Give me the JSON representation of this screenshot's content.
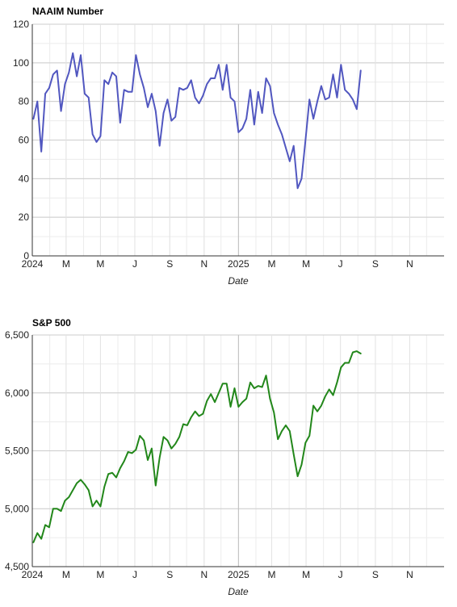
{
  "chart_data": [
    {
      "type": "line",
      "title": "NAAIM Number",
      "xlabel": "Date",
      "ylabel": "",
      "ylim": [
        0,
        120
      ],
      "yticks": [
        "0",
        "20",
        "40",
        "60",
        "80",
        "100",
        "120"
      ],
      "xlim": [
        "2024-01-01",
        "2026-01-01"
      ],
      "xticks": [
        {
          "date": "2024-01-01",
          "label": "2024"
        },
        {
          "date": "2024-03-01",
          "label": "M"
        },
        {
          "date": "2024-05-01",
          "label": "M"
        },
        {
          "date": "2024-07-01",
          "label": "J"
        },
        {
          "date": "2024-09-01",
          "label": "S"
        },
        {
          "date": "2024-11-01",
          "label": "N"
        },
        {
          "date": "2025-01-01",
          "label": "2025"
        },
        {
          "date": "2025-03-01",
          "label": "M"
        },
        {
          "date": "2025-05-01",
          "label": "M"
        },
        {
          "date": "2025-07-01",
          "label": "J"
        },
        {
          "date": "2025-09-01",
          "label": "S"
        },
        {
          "date": "2025-11-01",
          "label": "N"
        }
      ],
      "grid": true,
      "color": "#5157c0",
      "series": [
        {
          "name": "",
          "x": [
            "2024-01-03",
            "2024-01-10",
            "2024-01-17",
            "2024-01-24",
            "2024-01-31",
            "2024-02-07",
            "2024-02-14",
            "2024-02-21",
            "2024-02-28",
            "2024-03-06",
            "2024-03-13",
            "2024-03-20",
            "2024-03-27",
            "2024-04-03",
            "2024-04-10",
            "2024-04-17",
            "2024-04-24",
            "2024-05-01",
            "2024-05-08",
            "2024-05-15",
            "2024-05-22",
            "2024-05-29",
            "2024-06-05",
            "2024-06-12",
            "2024-06-19",
            "2024-06-26",
            "2024-07-03",
            "2024-07-10",
            "2024-07-17",
            "2024-07-24",
            "2024-07-31",
            "2024-08-07",
            "2024-08-14",
            "2024-08-21",
            "2024-08-28",
            "2024-09-04",
            "2024-09-11",
            "2024-09-18",
            "2024-09-25",
            "2024-10-02",
            "2024-10-09",
            "2024-10-16",
            "2024-10-23",
            "2024-10-30",
            "2024-11-06",
            "2024-11-13",
            "2024-11-20",
            "2024-11-27",
            "2024-12-04",
            "2024-12-11",
            "2024-12-18",
            "2024-12-25",
            "2025-01-01",
            "2025-01-08",
            "2025-01-15",
            "2025-01-22",
            "2025-01-29",
            "2025-02-05",
            "2025-02-12",
            "2025-02-19",
            "2025-02-26",
            "2025-03-05",
            "2025-03-12",
            "2025-03-19",
            "2025-03-26",
            "2025-04-02",
            "2025-04-09",
            "2025-04-16",
            "2025-04-23",
            "2025-04-30",
            "2025-05-07",
            "2025-05-14",
            "2025-05-21",
            "2025-05-28",
            "2025-06-04",
            "2025-06-11",
            "2025-06-18",
            "2025-06-25",
            "2025-07-02",
            "2025-07-09",
            "2025-07-16",
            "2025-07-23",
            "2025-07-30",
            "2025-08-06"
          ],
          "values": [
            71,
            80,
            54,
            84,
            87,
            94,
            96,
            75,
            89,
            95,
            105,
            93,
            104,
            84,
            82,
            63,
            59,
            62,
            91,
            89,
            95,
            93,
            69,
            86,
            85,
            85,
            104,
            94,
            87,
            77,
            84,
            75,
            57,
            74,
            81,
            70,
            72,
            87,
            86,
            87,
            91,
            82,
            79,
            83,
            89,
            92,
            92,
            99,
            86,
            99,
            82,
            80,
            64,
            66,
            71,
            86,
            68,
            85,
            74,
            92,
            88,
            74,
            68,
            63,
            56,
            49,
            57,
            35,
            40,
            60,
            81,
            71,
            80,
            88,
            81,
            82,
            94,
            82,
            99,
            86,
            84,
            81,
            76,
            96
          ]
        }
      ]
    },
    {
      "type": "line",
      "title": "S&P 500",
      "xlabel": "Date",
      "ylabel": "",
      "ylim": [
        4500,
        6500
      ],
      "yticks": [
        "4,500",
        "5,000",
        "5,500",
        "6,000",
        "6,500"
      ],
      "xlim": [
        "2024-01-01",
        "2026-01-01"
      ],
      "xticks": [
        {
          "date": "2024-01-01",
          "label": "2024"
        },
        {
          "date": "2024-03-01",
          "label": "M"
        },
        {
          "date": "2024-05-01",
          "label": "M"
        },
        {
          "date": "2024-07-01",
          "label": "J"
        },
        {
          "date": "2024-09-01",
          "label": "S"
        },
        {
          "date": "2024-11-01",
          "label": "N"
        },
        {
          "date": "2025-01-01",
          "label": "2025"
        },
        {
          "date": "2025-03-01",
          "label": "M"
        },
        {
          "date": "2025-05-01",
          "label": "M"
        },
        {
          "date": "2025-07-01",
          "label": "J"
        },
        {
          "date": "2025-09-01",
          "label": "S"
        },
        {
          "date": "2025-11-01",
          "label": "N"
        }
      ],
      "grid": true,
      "color": "#22871a",
      "series": [
        {
          "name": "",
          "x": [
            "2024-01-03",
            "2024-01-10",
            "2024-01-17",
            "2024-01-24",
            "2024-01-31",
            "2024-02-07",
            "2024-02-14",
            "2024-02-21",
            "2024-02-28",
            "2024-03-06",
            "2024-03-13",
            "2024-03-20",
            "2024-03-27",
            "2024-04-03",
            "2024-04-10",
            "2024-04-17",
            "2024-04-24",
            "2024-05-01",
            "2024-05-08",
            "2024-05-15",
            "2024-05-22",
            "2024-05-29",
            "2024-06-05",
            "2024-06-12",
            "2024-06-19",
            "2024-06-26",
            "2024-07-03",
            "2024-07-10",
            "2024-07-17",
            "2024-07-24",
            "2024-07-31",
            "2024-08-07",
            "2024-08-14",
            "2024-08-21",
            "2024-08-28",
            "2024-09-04",
            "2024-09-11",
            "2024-09-18",
            "2024-09-25",
            "2024-10-02",
            "2024-10-09",
            "2024-10-16",
            "2024-10-23",
            "2024-10-30",
            "2024-11-06",
            "2024-11-13",
            "2024-11-20",
            "2024-11-27",
            "2024-12-04",
            "2024-12-11",
            "2024-12-18",
            "2024-12-25",
            "2025-01-01",
            "2025-01-08",
            "2025-01-15",
            "2025-01-22",
            "2025-01-29",
            "2025-02-05",
            "2025-02-12",
            "2025-02-19",
            "2025-02-26",
            "2025-03-05",
            "2025-03-12",
            "2025-03-19",
            "2025-03-26",
            "2025-04-02",
            "2025-04-09",
            "2025-04-16",
            "2025-04-23",
            "2025-04-30",
            "2025-05-07",
            "2025-05-14",
            "2025-05-21",
            "2025-05-28",
            "2025-06-04",
            "2025-06-11",
            "2025-06-18",
            "2025-06-25",
            "2025-07-02",
            "2025-07-09",
            "2025-07-16",
            "2025-07-23",
            "2025-07-30",
            "2025-08-06"
          ],
          "values": [
            4710,
            4790,
            4740,
            4860,
            4840,
            5000,
            5000,
            4980,
            5070,
            5100,
            5160,
            5220,
            5250,
            5210,
            5160,
            5020,
            5070,
            5020,
            5190,
            5300,
            5310,
            5270,
            5350,
            5410,
            5490,
            5480,
            5510,
            5630,
            5590,
            5420,
            5520,
            5200,
            5440,
            5620,
            5590,
            5520,
            5560,
            5620,
            5730,
            5720,
            5790,
            5840,
            5800,
            5820,
            5930,
            5990,
            5920,
            6000,
            6080,
            6080,
            5880,
            6040,
            5880,
            5920,
            5950,
            6090,
            6040,
            6060,
            6050,
            6150,
            5950,
            5830,
            5600,
            5670,
            5720,
            5670,
            5470,
            5280,
            5380,
            5570,
            5630,
            5890,
            5840,
            5890,
            5970,
            6030,
            5980,
            6090,
            6220,
            6260,
            6260,
            6350,
            6360,
            6340
          ]
        }
      ]
    }
  ]
}
